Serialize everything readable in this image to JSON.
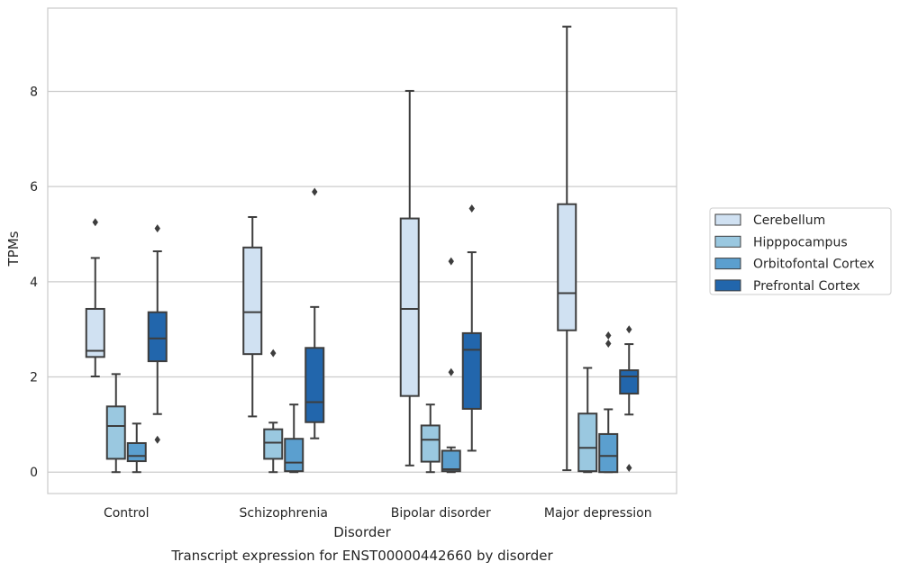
{
  "chart_data": {
    "type": "boxplot",
    "title": "Transcript expression for ENST00000442660 by disorder",
    "xlabel": "Disorder",
    "ylabel": "TPMs",
    "ylim": [
      -0.45,
      9.75
    ],
    "yticks": [
      0,
      2,
      4,
      6,
      8
    ],
    "grid": "horizontal",
    "legend_position": "right",
    "categories": [
      "Control",
      "Schizophrenia",
      "Bipolar disorder",
      "Major depression"
    ],
    "series": [
      {
        "name": "Cerebellum",
        "color": "#d0e1f2",
        "boxes": [
          {
            "q1": 2.42,
            "median": 2.55,
            "q3": 3.43,
            "whislo": 2.01,
            "whishi": 4.5,
            "fliers": [
              5.25
            ]
          },
          {
            "q1": 2.48,
            "median": 3.36,
            "q3": 4.72,
            "whislo": 1.17,
            "whishi": 5.36,
            "fliers": []
          },
          {
            "q1": 1.6,
            "median": 3.43,
            "q3": 5.33,
            "whislo": 0.14,
            "whishi": 8.01,
            "fliers": []
          },
          {
            "q1": 2.98,
            "median": 3.76,
            "q3": 5.63,
            "whislo": 0.04,
            "whishi": 9.36,
            "fliers": []
          }
        ]
      },
      {
        "name": "Hipppocampus",
        "color": "#9ac8e0",
        "boxes": [
          {
            "q1": 0.28,
            "median": 0.97,
            "q3": 1.38,
            "whislo": 0.0,
            "whishi": 2.06,
            "fliers": []
          },
          {
            "q1": 0.28,
            "median": 0.62,
            "q3": 0.9,
            "whislo": 0.0,
            "whishi": 1.04,
            "fliers": [
              2.5
            ]
          },
          {
            "q1": 0.22,
            "median": 0.68,
            "q3": 0.98,
            "whislo": 0.0,
            "whishi": 1.42,
            "fliers": []
          },
          {
            "q1": 0.02,
            "median": 0.51,
            "q3": 1.23,
            "whislo": 0.0,
            "whishi": 2.19,
            "fliers": []
          }
        ]
      },
      {
        "name": "Orbitofontal Cortex",
        "color": "#5b9fcf",
        "boxes": [
          {
            "q1": 0.23,
            "median": 0.34,
            "q3": 0.61,
            "whislo": 0.0,
            "whishi": 1.02,
            "fliers": []
          },
          {
            "q1": 0.02,
            "median": 0.2,
            "q3": 0.7,
            "whislo": 0.0,
            "whishi": 1.42,
            "fliers": []
          },
          {
            "q1": 0.02,
            "median": 0.06,
            "q3": 0.45,
            "whislo": 0.0,
            "whishi": 0.52,
            "fliers": [
              2.1,
              4.43
            ]
          },
          {
            "q1": 0.0,
            "median": 0.34,
            "q3": 0.8,
            "whislo": 0.0,
            "whishi": 1.32,
            "fliers": [
              2.7,
              2.87
            ]
          }
        ]
      },
      {
        "name": "Prefrontal Cortex",
        "color": "#2266ac",
        "boxes": [
          {
            "q1": 2.33,
            "median": 2.81,
            "q3": 3.36,
            "whislo": 1.22,
            "whishi": 4.64,
            "fliers": [
              0.68,
              5.12
            ]
          },
          {
            "q1": 1.05,
            "median": 1.47,
            "q3": 2.61,
            "whislo": 0.71,
            "whishi": 3.47,
            "fliers": [
              5.89
            ]
          },
          {
            "q1": 1.33,
            "median": 2.57,
            "q3": 2.92,
            "whislo": 0.45,
            "whishi": 4.62,
            "fliers": [
              5.54
            ]
          },
          {
            "q1": 1.65,
            "median": 2.01,
            "q3": 2.14,
            "whislo": 1.21,
            "whishi": 2.69,
            "fliers": [
              0.09,
              3.0
            ]
          }
        ]
      }
    ]
  }
}
